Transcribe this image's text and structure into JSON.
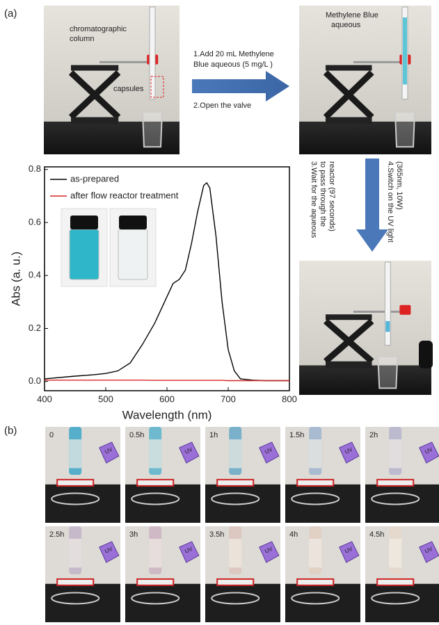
{
  "panel_a_label": "(a)",
  "panel_b_label": "(b)",
  "setup": {
    "column_label": [
      "chromatographic",
      "column"
    ],
    "capsules_label": "capsules",
    "methylene_label": [
      "Methylene Blue",
      "aqueous"
    ]
  },
  "steps": {
    "step1": [
      "1.Add 20 mL Methylene",
      "Blue aqueous (5 mg/L )"
    ],
    "step2": "2.Open the valve",
    "step3": [
      "3.Wait for the aqueous",
      "to pass through the",
      "reactor (97 seconds)"
    ],
    "step4": [
      "4.Switch on the UV light",
      "(365nm, 10W)"
    ]
  },
  "time_series": {
    "labels": [
      "0",
      "0.5h",
      "1h",
      "1.5h",
      "2h",
      "2.5h",
      "3h",
      "3.5h",
      "4h",
      "4.5h"
    ],
    "uv_label": "UV"
  },
  "chart_data": {
    "type": "line",
    "xlabel": "Wavelength (nm)",
    "ylabel": "Abs (a. u.)",
    "x": [
      400,
      450,
      480,
      500,
      520,
      540,
      560,
      580,
      600,
      610,
      620,
      630,
      640,
      650,
      660,
      665,
      670,
      680,
      690,
      700,
      710,
      720,
      740,
      760,
      800
    ],
    "series": [
      {
        "name": "as-prepared",
        "color": "#000000",
        "values": [
          0.01,
          0.02,
          0.025,
          0.03,
          0.04,
          0.07,
          0.14,
          0.22,
          0.32,
          0.37,
          0.385,
          0.42,
          0.52,
          0.64,
          0.74,
          0.75,
          0.73,
          0.55,
          0.3,
          0.12,
          0.04,
          0.01,
          0.005,
          0.003,
          0.003
        ]
      },
      {
        "name": "after flow reactor treatment",
        "color": "#d62728",
        "values": [
          0.005,
          0.005,
          0.005,
          0.005,
          0.005,
          0.005,
          0.005,
          0.004,
          0.004,
          0.004,
          0.004,
          0.004,
          0.004,
          0.004,
          0.004,
          0.004,
          0.004,
          0.004,
          0.004,
          0.003,
          0.003,
          0.003,
          0.003,
          0.003,
          0.003
        ]
      }
    ],
    "xlim": [
      400,
      800
    ],
    "xticks": [
      400,
      500,
      600,
      700,
      800
    ],
    "ylim": [
      -0.035,
      0.81
    ],
    "yticks": [
      {
        "value": 0,
        "label": "0.0"
      },
      0.2,
      0.4,
      0.6,
      0.8
    ]
  }
}
